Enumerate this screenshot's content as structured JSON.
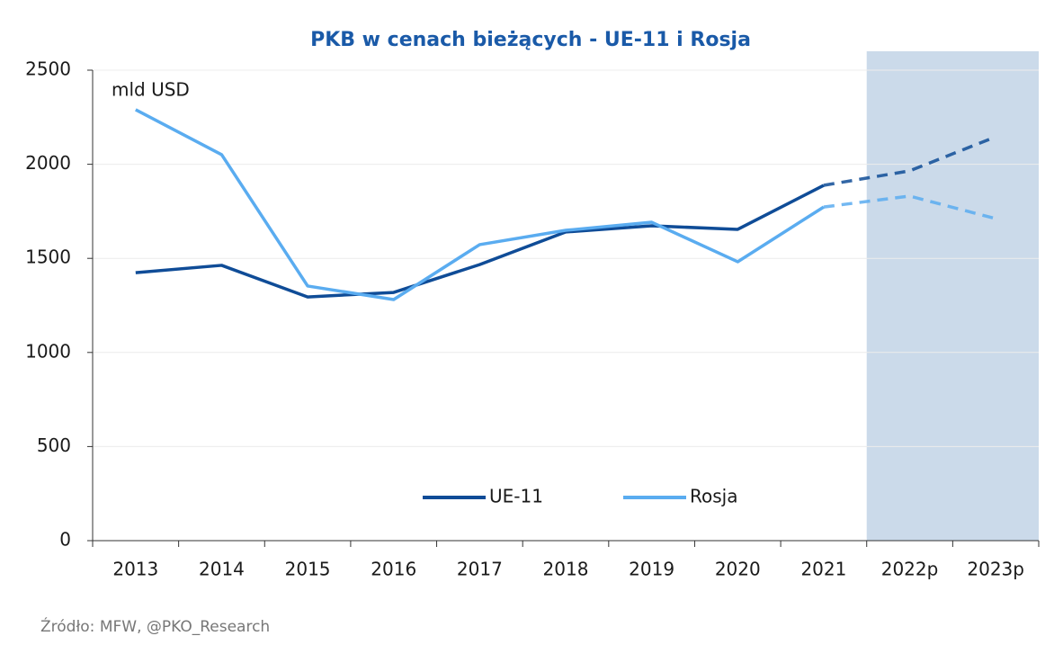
{
  "chart_data": {
    "type": "line",
    "title": "PKB w cenach bieżących - UE-11 i Rosja",
    "y_unit_label": "mld USD",
    "source": "Źródło: MFW, @PKO_Research",
    "categories": [
      "2013",
      "2014",
      "2015",
      "2016",
      "2017",
      "2018",
      "2019",
      "2020",
      "2021",
      "2022p",
      "2023p"
    ],
    "series": [
      {
        "name": "UE-11",
        "color": "#0f4c97",
        "values": [
          1424,
          1463,
          1295,
          1319,
          1467,
          1640,
          1673,
          1654,
          1888,
          1965,
          2146
        ]
      },
      {
        "name": "Rosja",
        "color": "#5aacf0",
        "values": [
          2290,
          2051,
          1353,
          1281,
          1573,
          1649,
          1692,
          1482,
          1773,
          1831,
          1711
        ]
      }
    ],
    "forecast_from_index": 9,
    "forecast_shade_color": "#cbdaea",
    "ylim": [
      0,
      2500
    ],
    "yticks": [
      0,
      500,
      1000,
      1500,
      2000,
      2500
    ],
    "grid": true,
    "legend": "bottom"
  }
}
